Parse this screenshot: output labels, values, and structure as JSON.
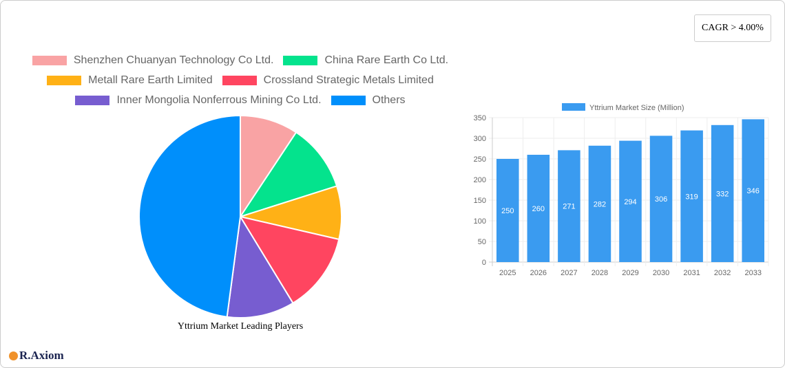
{
  "cagr_label": "CAGR > 4.00%",
  "logo_text": "R.Axiom",
  "chart_data": [
    {
      "type": "pie",
      "title": "Yttrium Market Leading Players",
      "legend_position": "top",
      "slices": [
        {
          "name": "Shenzhen Chuanyan Technology Co  Ltd.",
          "value": 9.3,
          "color": "#f9a3a4"
        },
        {
          "name": "China Rare Earth Co  Ltd.",
          "value": 10.8,
          "color": "#04e38d"
        },
        {
          "name": "Metall Rare Earth Limited",
          "value": 8.5,
          "color": "#ffb116"
        },
        {
          "name": "Crossland Strategic Metals Limited",
          "value": 12.7,
          "color": "#ff4560"
        },
        {
          "name": "Inner Mongolia Nonferrous Mining Co  Ltd.",
          "value": 10.8,
          "color": "#775dd0"
        },
        {
          "name": "Others",
          "value": 47.9,
          "color": "#008ffb"
        }
      ]
    },
    {
      "type": "bar",
      "legend": "Yttrium Market Size (Million)",
      "legend_position": "top",
      "color": "#3a9bf0",
      "grid": true,
      "categories": [
        "2025",
        "2026",
        "2027",
        "2028",
        "2029",
        "2030",
        "2031",
        "2032",
        "2033"
      ],
      "values": [
        250,
        260,
        271,
        282,
        294,
        306,
        319,
        332,
        346
      ],
      "ylim": [
        0,
        350
      ],
      "yticks": [
        0,
        50,
        100,
        150,
        200,
        250,
        300,
        350
      ]
    }
  ]
}
